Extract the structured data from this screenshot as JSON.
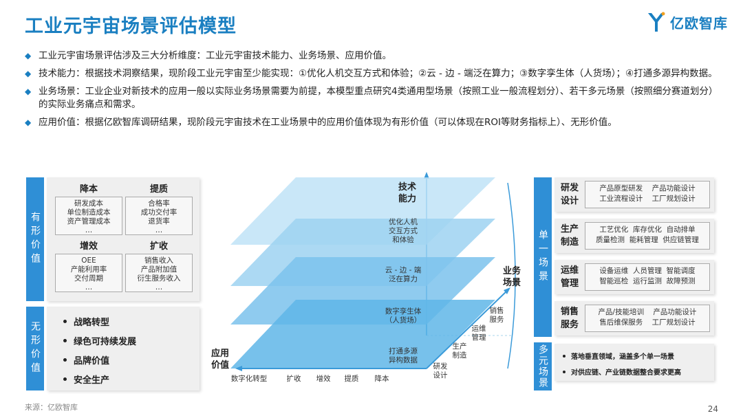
{
  "title": "工业元宇宙场景评估模型",
  "logo": {
    "text": "亿欧智库"
  },
  "bullets": [
    "工业元宇宙场景评估涉及三大分析维度：工业元宇宙技术能力、业务场景、应用价值。",
    "技术能力：根据技术洞察结果，现阶段工业元宇宙至少能实现：①优化人机交互方式和体验；②云 - 边 - 端泛在算力；③数字孪生体（人货场）；④打通多源异构数据。",
    "业务场景：工业企业对新技术的应用一般以实际业务场景需要为前提，本模型重点研究4类通用型场景（按照工业一般流程划分）、若干多元场景（按照细分赛道划分）的实际业务痛点和需求。",
    "应用价值：根据亿欧智库调研结果，现阶段元宇宙技术在工业场景中的应用价值体现为有形价值（可以体现在ROI等财务指标上）、无形价值。"
  ],
  "left": {
    "tangible_label": "有形价值",
    "intangible_label": "无形价值",
    "quads": [
      {
        "title": "降本",
        "lines": [
          "研发成本",
          "单位制造成本",
          "资产管理成本",
          "…"
        ]
      },
      {
        "title": "提质",
        "lines": [
          "合格率",
          "成功交付率",
          "退货率",
          "…"
        ]
      },
      {
        "title": "增效",
        "lines": [
          "OEE",
          "产能利用率",
          "交付周期",
          "…"
        ]
      },
      {
        "title": "扩收",
        "lines": [
          "销售收入",
          "产品附加值",
          "衍生服务收入",
          "…"
        ]
      }
    ],
    "intangibles": [
      "战略转型",
      "绿色可持续发展",
      "品牌价值",
      "安全生产"
    ]
  },
  "center": {
    "y_axis_title": [
      "技术",
      "能力"
    ],
    "x_axis_title": [
      "应用",
      "价值"
    ],
    "z_axis_title": [
      "业务",
      "场景"
    ],
    "layers": [
      [
        "优化人机",
        "交互方式",
        "和体验"
      ],
      [
        "云 - 边 - 端",
        "泛在算力"
      ],
      [
        "数字孪生体",
        "（人货场）"
      ],
      [
        "打通多源",
        "异构数据"
      ]
    ],
    "x_ticks": [
      "数字化转型",
      "扩收",
      "增效",
      "提质",
      "降本"
    ],
    "z_ticks": [
      [
        "研发",
        "设计"
      ],
      [
        "生产",
        "制造"
      ],
      [
        "运维",
        "管理"
      ],
      [
        "销售",
        "服务"
      ]
    ]
  },
  "right": {
    "single_label": "单一场景",
    "multi_label": "多元场景",
    "rows": [
      {
        "label": "研发设计",
        "content": "产品原型研发    产品功能设计\n工业流程设计    工厂规划设计"
      },
      {
        "label": "生产制造",
        "content": "工艺优化  库存优化  自动排单\n质量检测  能耗管理  供应链管理"
      },
      {
        "label": "运维管理",
        "content": "设备运维  人员管理  智能调度\n智能巡检  运行监测  故障预测"
      },
      {
        "label": "销售服务",
        "content": "产品/技能培训    产品功能设计\n售后维保服务    工厂规划设计"
      }
    ],
    "multi_items": [
      "落地垂直领域，涵盖多个单一场景",
      "对供应链、产业链数据整合要求更高"
    ]
  },
  "footer": {
    "source": "来源：亿欧智库",
    "page": "24"
  },
  "colors": {
    "accent": "#1a7fc1",
    "band": "#2f8fd6",
    "layer_light": "#bfe3f7",
    "layer_dark": "#5fb6e8"
  }
}
